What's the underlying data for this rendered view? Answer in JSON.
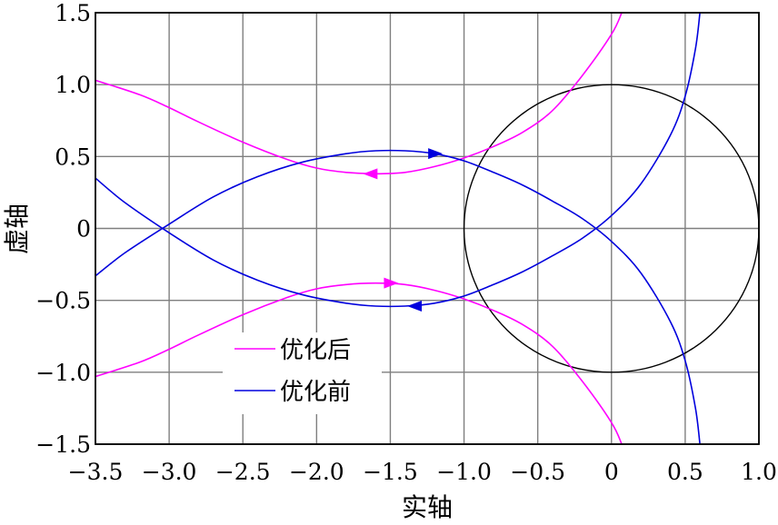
{
  "chart_data": {
    "type": "line",
    "title": "",
    "xlabel": "实轴",
    "ylabel": "虚轴",
    "xlim": [
      -3.5,
      1.0
    ],
    "ylim": [
      -1.5,
      1.5
    ],
    "xticks": [
      -3.5,
      -3.0,
      -2.5,
      -2.0,
      -1.5,
      -1.0,
      -0.5,
      0,
      0.5,
      1.0
    ],
    "xtick_labels": [
      "−3.5",
      "−3.0",
      "−2.5",
      "−2.0",
      "−1.5",
      "−1.0",
      "−0.5",
      "0",
      "0.5",
      "1.0"
    ],
    "yticks": [
      -1.5,
      -1.0,
      -0.5,
      0,
      0.5,
      1.0,
      1.5
    ],
    "ytick_labels": [
      "−1.5",
      "−1.0",
      "−0.5",
      "0",
      "0.5",
      "1.0",
      "1.5"
    ],
    "grid": true,
    "legend_position": "bottom-left",
    "colors": {
      "after": "#ff00ff",
      "before": "#0000dd",
      "circle": "#000000",
      "grid": "#7f7f7f"
    },
    "unit_circle": {
      "center": [
        0,
        0
      ],
      "radius": 1
    },
    "series": [
      {
        "name": "优化后",
        "color": "#ff00ff",
        "curves": [
          [
            [
              -3.5,
              1.03
            ],
            [
              -3.2,
              0.93
            ],
            [
              -3.0,
              0.84
            ],
            [
              -2.8,
              0.74
            ],
            [
              -2.5,
              0.6
            ],
            [
              -2.2,
              0.48
            ],
            [
              -2.0,
              0.42
            ],
            [
              -1.8,
              0.39
            ],
            [
              -1.6,
              0.38
            ],
            [
              -1.4,
              0.39
            ],
            [
              -1.2,
              0.43
            ],
            [
              -1.0,
              0.49
            ],
            [
              -0.8,
              0.57
            ],
            [
              -0.6,
              0.67
            ],
            [
              -0.4,
              0.82
            ],
            [
              -0.2,
              1.06
            ],
            [
              0.0,
              1.35
            ],
            [
              0.07,
              1.5
            ]
          ],
          [
            [
              -3.5,
              -1.03
            ],
            [
              -3.2,
              -0.93
            ],
            [
              -3.0,
              -0.84
            ],
            [
              -2.8,
              -0.74
            ],
            [
              -2.5,
              -0.6
            ],
            [
              -2.2,
              -0.48
            ],
            [
              -2.0,
              -0.42
            ],
            [
              -1.8,
              -0.39
            ],
            [
              -1.6,
              -0.38
            ],
            [
              -1.4,
              -0.39
            ],
            [
              -1.2,
              -0.43
            ],
            [
              -1.0,
              -0.49
            ],
            [
              -0.8,
              -0.57
            ],
            [
              -0.6,
              -0.67
            ],
            [
              -0.4,
              -0.82
            ],
            [
              -0.2,
              -1.06
            ],
            [
              0.0,
              -1.35
            ],
            [
              0.07,
              -1.5
            ]
          ]
        ],
        "arrows": [
          {
            "at": [
              -1.63,
              0.38
            ],
            "direction": "left"
          },
          {
            "at": [
              -1.5,
              -0.38
            ],
            "direction": "right"
          }
        ]
      },
      {
        "name": "优化前",
        "color": "#0000dd",
        "curves": [
          [
            [
              -3.5,
              -0.33
            ],
            [
              -3.3,
              -0.17
            ],
            [
              -3.0,
              0.03
            ],
            [
              -2.7,
              0.22
            ],
            [
              -2.4,
              0.36
            ],
            [
              -2.1,
              0.46
            ],
            [
              -1.8,
              0.52
            ],
            [
              -1.6,
              0.54
            ],
            [
              -1.4,
              0.54
            ],
            [
              -1.2,
              0.52
            ],
            [
              -1.0,
              0.47
            ],
            [
              -0.8,
              0.39
            ],
            [
              -0.6,
              0.3
            ],
            [
              -0.4,
              0.19
            ],
            [
              -0.2,
              0.07
            ],
            [
              0.0,
              -0.09
            ],
            [
              0.2,
              -0.31
            ],
            [
              0.4,
              -0.65
            ],
            [
              0.5,
              -0.92
            ],
            [
              0.57,
              -1.25
            ],
            [
              0.6,
              -1.5
            ]
          ],
          [
            [
              -3.5,
              0.35
            ],
            [
              -3.3,
              0.18
            ],
            [
              -3.0,
              -0.03
            ],
            [
              -2.7,
              -0.22
            ],
            [
              -2.4,
              -0.36
            ],
            [
              -2.1,
              -0.46
            ],
            [
              -1.8,
              -0.52
            ],
            [
              -1.6,
              -0.54
            ],
            [
              -1.4,
              -0.54
            ],
            [
              -1.2,
              -0.52
            ],
            [
              -1.0,
              -0.47
            ],
            [
              -0.8,
              -0.39
            ],
            [
              -0.6,
              -0.3
            ],
            [
              -0.4,
              -0.19
            ],
            [
              -0.2,
              -0.07
            ],
            [
              0.0,
              0.09
            ],
            [
              0.2,
              0.31
            ],
            [
              0.4,
              0.65
            ],
            [
              0.5,
              0.92
            ],
            [
              0.57,
              1.25
            ],
            [
              0.6,
              1.5
            ]
          ]
        ],
        "arrows": [
          {
            "at": [
              -1.2,
              0.52
            ],
            "direction": "right"
          },
          {
            "at": [
              -1.33,
              -0.54
            ],
            "direction": "left"
          }
        ]
      }
    ]
  }
}
